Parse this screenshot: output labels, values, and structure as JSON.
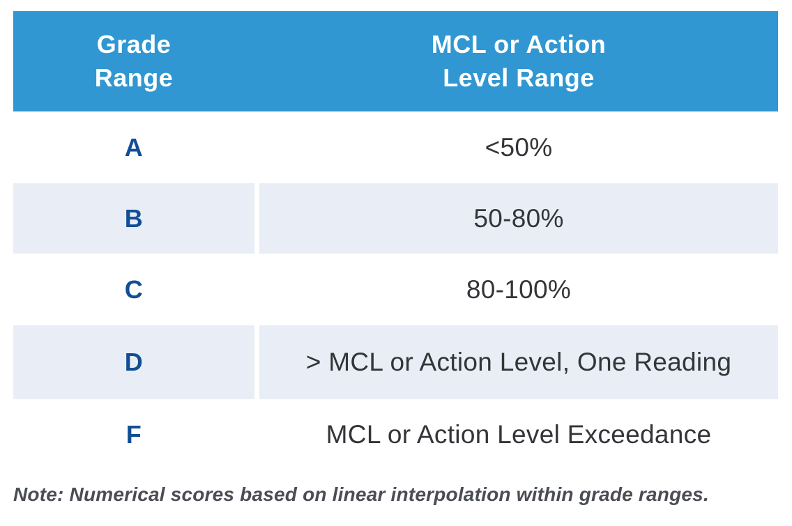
{
  "table": {
    "header": {
      "col1": "Grade\nRange",
      "col2": "MCL or Action\nLevel Range"
    },
    "rows": [
      {
        "grade": "A",
        "range": "<50%"
      },
      {
        "grade": "B",
        "range": "50-80%"
      },
      {
        "grade": "C",
        "range": "80-100%"
      },
      {
        "grade": "D",
        "range": "> MCL or Action Level, One Reading"
      },
      {
        "grade": "F",
        "range": "MCL or Action Level Exceedance"
      }
    ]
  },
  "note": "Note: Numerical scores based on linear interpolation within grade ranges.",
  "colors": {
    "header_bg": "#3097d2",
    "header_text": "#ffffff",
    "row_shaded_bg": "#e9eef6",
    "grade_text": "#124e96",
    "value_text": "#333538",
    "note_text": "#4a4d53"
  }
}
